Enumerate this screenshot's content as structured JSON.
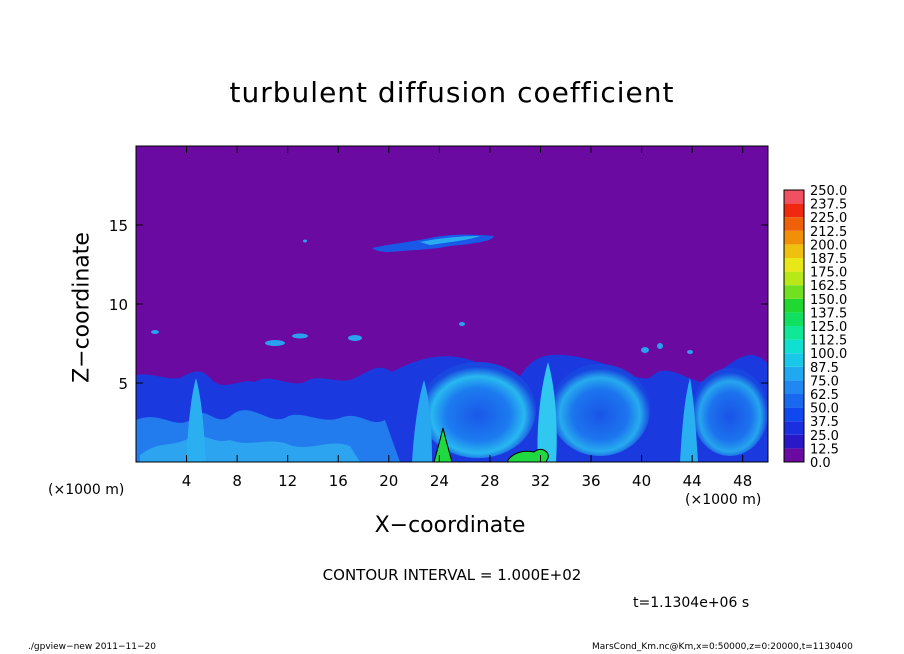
{
  "header": {
    "title": "turbulent diffusion coefficient"
  },
  "axes": {
    "xlabel": "X−coordinate",
    "ylabel": "Z−coordinate",
    "x_unit_left": "(×1000 m)",
    "x_unit_right": "(×1000 m)"
  },
  "footer": {
    "contour_interval": "CONTOUR INTERVAL = 1.000E+02",
    "time": "t=1.1304e+06 s",
    "program": "./gpview−new  2011−11−20",
    "meta": "MarsCond_Km.nc@Km,x=0:50000,z=0:20000,t=1130400"
  },
  "chart_data": {
    "type": "heatmap",
    "title": "turbulent diffusion coefficient",
    "xlabel": "X−coordinate",
    "ylabel": "Z−coordinate",
    "xlim": [
      0,
      50
    ],
    "ylim": [
      0,
      20
    ],
    "x_ticks": [
      "4",
      "8",
      "12",
      "16",
      "20",
      "24",
      "28",
      "32",
      "36",
      "40",
      "44",
      "48"
    ],
    "x_tick_values": [
      4,
      8,
      12,
      16,
      20,
      24,
      28,
      32,
      36,
      40,
      44,
      48
    ],
    "y_ticks": [
      "5",
      "10",
      "15"
    ],
    "y_tick_values": [
      5,
      10,
      15
    ],
    "legend_position": "right",
    "colorbar_levels": [
      "0.0",
      "12.5",
      "25.0",
      "37.5",
      "50.0",
      "62.5",
      "75.0",
      "87.5",
      "100.0",
      "112.5",
      "125.0",
      "137.5",
      "150.0",
      "162.5",
      "175.0",
      "187.5",
      "200.0",
      "212.5",
      "225.0",
      "237.5",
      "250.0"
    ],
    "colorbar_colors": [
      "#6a0aa0",
      "#2a18c8",
      "#1a30e0",
      "#1048f0",
      "#1868f0",
      "#2088f0",
      "#20a8f0",
      "#18c8e8",
      "#10e0d0",
      "#10e898",
      "#10e060",
      "#20d830",
      "#70e020",
      "#b8e818",
      "#e8e818",
      "#f0c010",
      "#f09008",
      "#f06008",
      "#f02810",
      "#f05060",
      "#f09090"
    ],
    "background_value": 0,
    "features": [
      {
        "region": "lower turbulent layer",
        "x_range": [
          0,
          50
        ],
        "z_range": [
          0,
          6.5
        ],
        "value_range": [
          12.5,
          75.0
        ]
      },
      {
        "region": "elevated patch",
        "x_range": [
          19,
          29
        ],
        "z_range": [
          13.5,
          14.4
        ],
        "value_range": [
          25.0,
          75.0
        ]
      },
      {
        "region": "green peak",
        "x_range": [
          23.3,
          24.3
        ],
        "z_range": [
          0,
          1.9
        ],
        "value_range": [
          100.0,
          112.5
        ]
      },
      {
        "region": "green patch",
        "x_range": [
          29.8,
          32.5
        ],
        "z_range": [
          0,
          0.8
        ],
        "value_range": [
          100.0,
          112.5
        ]
      }
    ]
  }
}
